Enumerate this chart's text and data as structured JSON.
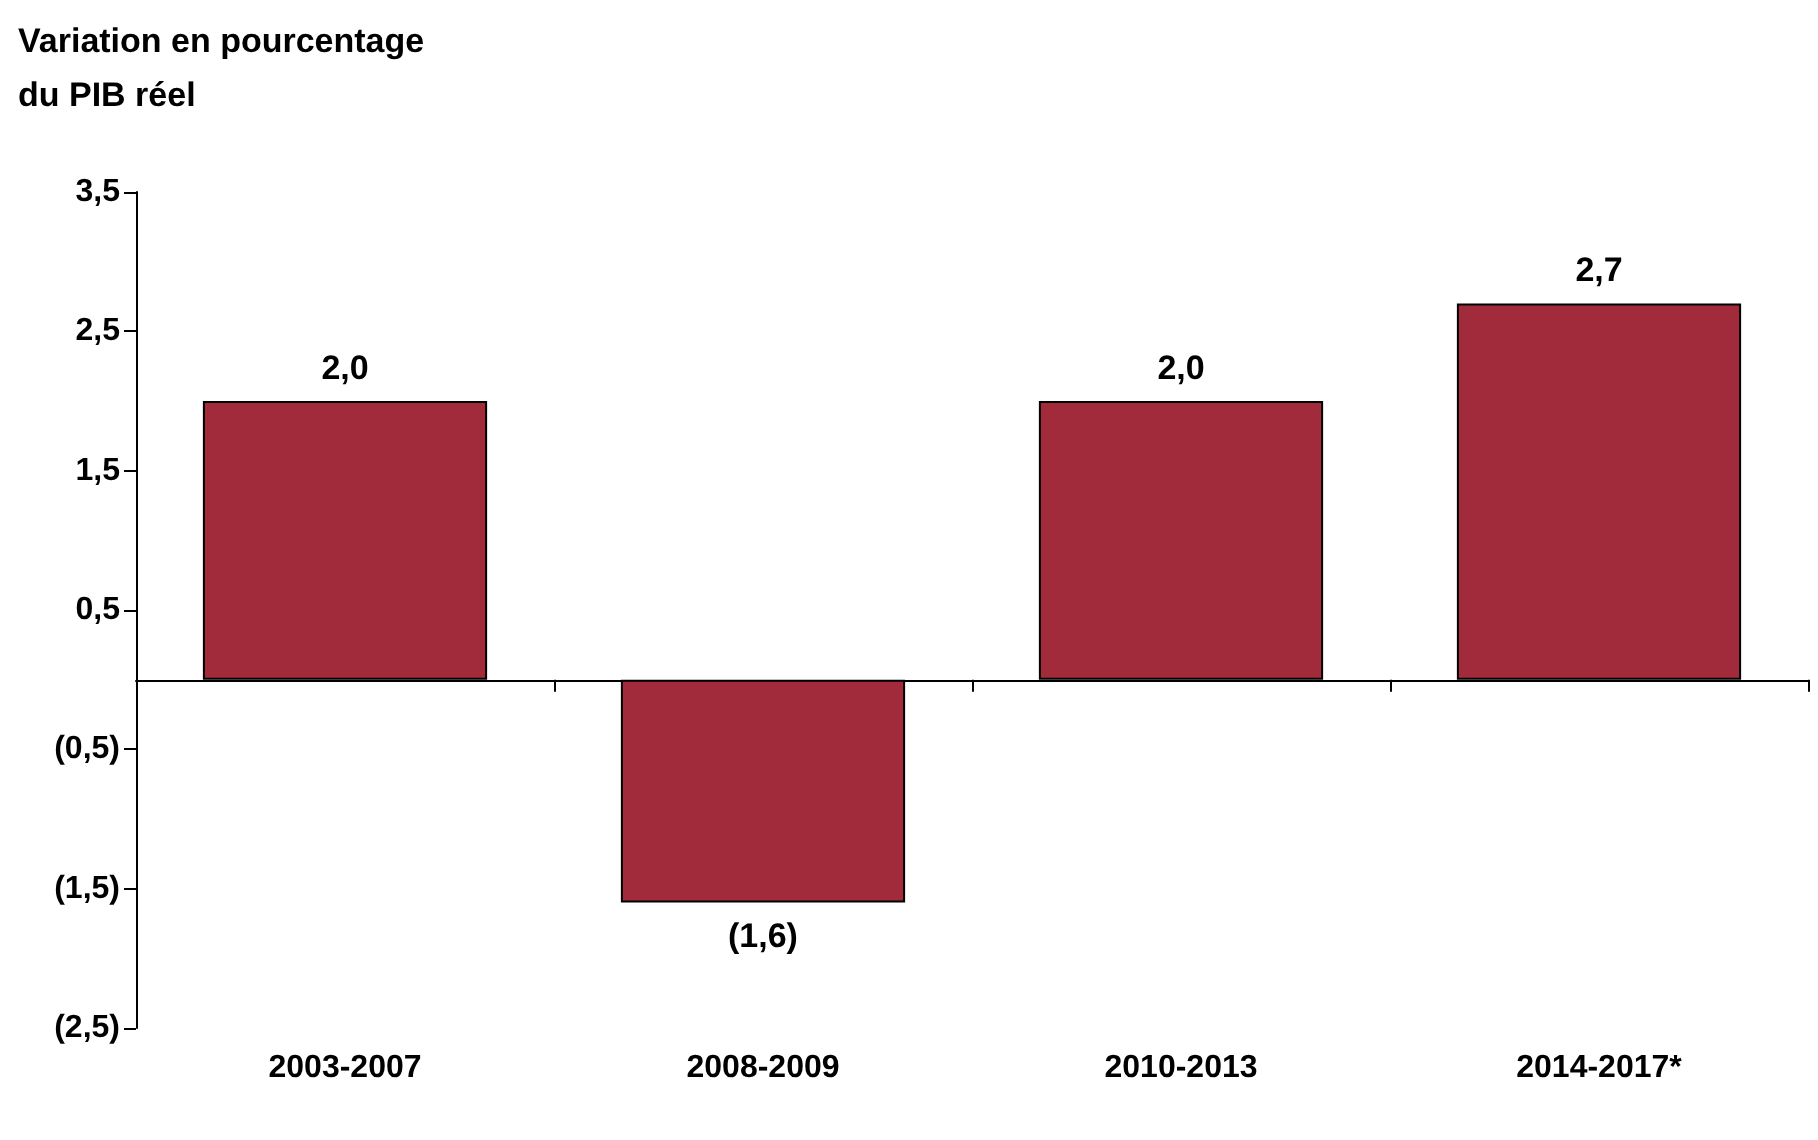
{
  "chart_data": {
    "type": "bar",
    "ylabel": "Variation en pourcentage\ndu PIB réel",
    "categories": [
      "2003-2007",
      "2008-2009",
      "2010-2013",
      "2014-2017*"
    ],
    "values": [
      2.0,
      -1.6,
      2.0,
      2.7
    ],
    "value_labels": [
      "2,0",
      "(1,6)",
      "2,0",
      "2,7"
    ],
    "color": "#a12a3b",
    "ylim": [
      -2.5,
      3.5
    ],
    "yticks": [
      {
        "value": -2.5,
        "label": "(2,5)"
      },
      {
        "value": -1.5,
        "label": "(1,5)"
      },
      {
        "value": -0.5,
        "label": "(0,5)"
      },
      {
        "value": 0.5,
        "label": "0,5"
      },
      {
        "value": 1.5,
        "label": "1,5"
      },
      {
        "value": 2.5,
        "label": "2,5"
      },
      {
        "value": 3.5,
        "label": "3,5"
      }
    ],
    "grid": false
  }
}
